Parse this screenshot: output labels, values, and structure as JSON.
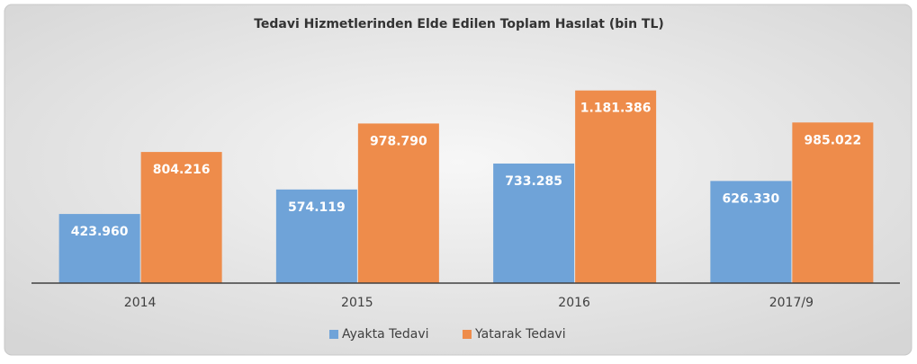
{
  "chart_data": {
    "type": "bar",
    "title": "Tedavi Hizmetlerinden Elde Edilen Toplam Hasılat (bin TL)",
    "categories": [
      "2014",
      "2015",
      "2016",
      "2017/9"
    ],
    "series": [
      {
        "name": "Ayakta Tedavi",
        "color": "#6fa3d8",
        "values": [
          423960,
          574119,
          733285,
          626330
        ],
        "value_labels": [
          "423.960",
          "574.119",
          "733.285",
          "626.330"
        ]
      },
      {
        "name": "Yatarak Tedavi",
        "color": "#ee8c4b",
        "values": [
          804216,
          978790,
          1181386,
          985022
        ],
        "value_labels": [
          "804.216",
          "978.790",
          "1.181.386",
          "985.022"
        ]
      }
    ],
    "ylim": [
      0,
      1400000
    ],
    "legend": "bottom"
  }
}
